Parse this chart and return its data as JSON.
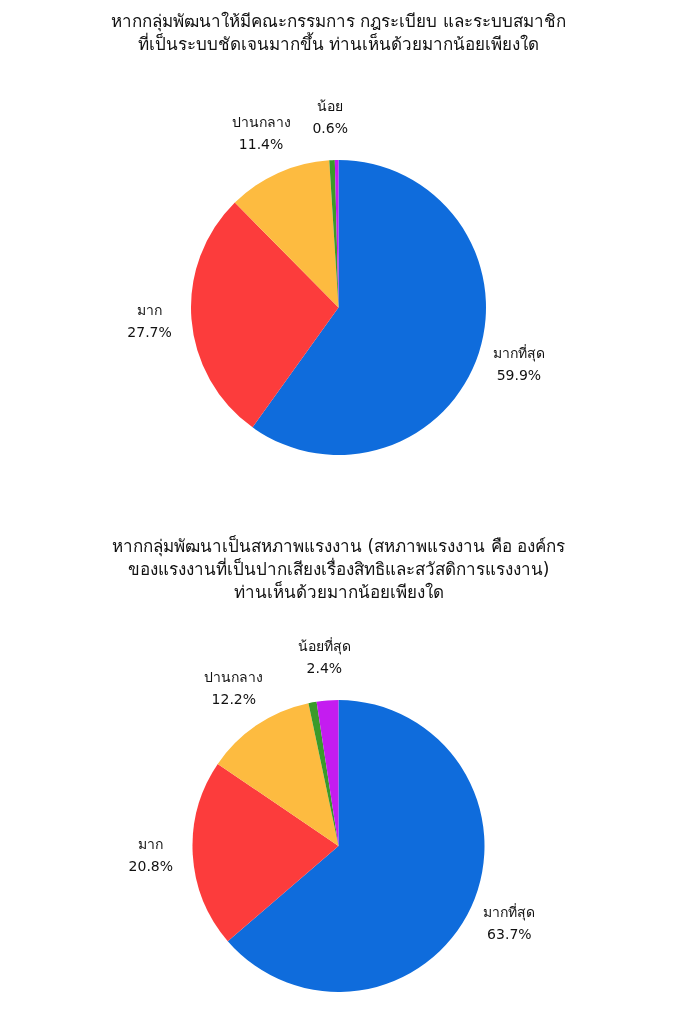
{
  "chart_data": [
    {
      "type": "pie",
      "title": "หากกลุ่มพัฒนาให้มีคณะกรรมการ กฎระเบียบ และระบบสมาชิก\nที่เป็นระบบชัดเจนมากขึ้น ท่านเห็นด้วยมากน้อยเพียงใด",
      "categories": [
        "มากที่สุด",
        "มาก",
        "ปานกลาง",
        "น้อย",
        null
      ],
      "values": [
        59.9,
        27.7,
        11.4,
        0.6,
        0.4
      ],
      "colors": [
        "#0f6cdc",
        "#fc3c3c",
        "#fdbb40",
        "#3a9a2a",
        "#c41cf0"
      ],
      "value_labels": [
        "59.9%",
        "27.7%",
        "11.4%",
        "0.6%",
        null
      ],
      "legend": false
    },
    {
      "type": "pie",
      "title": "หากกลุ่มพัฒนาเป็นสหภาพแรงงาน (สหภาพแรงงาน คือ องค์กร\nของแรงงานที่เป็นปากเสียงเรื่องสิทธิและสวัสดิการแรงงาน)\nท่านเห็นด้วยมากน้อยเพียงใด",
      "categories": [
        "มากที่สุด",
        "มาก",
        "ปานกลาง",
        null,
        "น้อยที่สุด"
      ],
      "values": [
        63.7,
        20.8,
        12.2,
        0.9,
        2.4
      ],
      "colors": [
        "#0f6cdc",
        "#fc3c3c",
        "#fdbb40",
        "#3a9a2a",
        "#c41cf0"
      ],
      "value_labels": [
        "63.7%",
        "20.8%",
        "12.2%",
        null,
        "2.4%"
      ],
      "legend": false
    }
  ]
}
